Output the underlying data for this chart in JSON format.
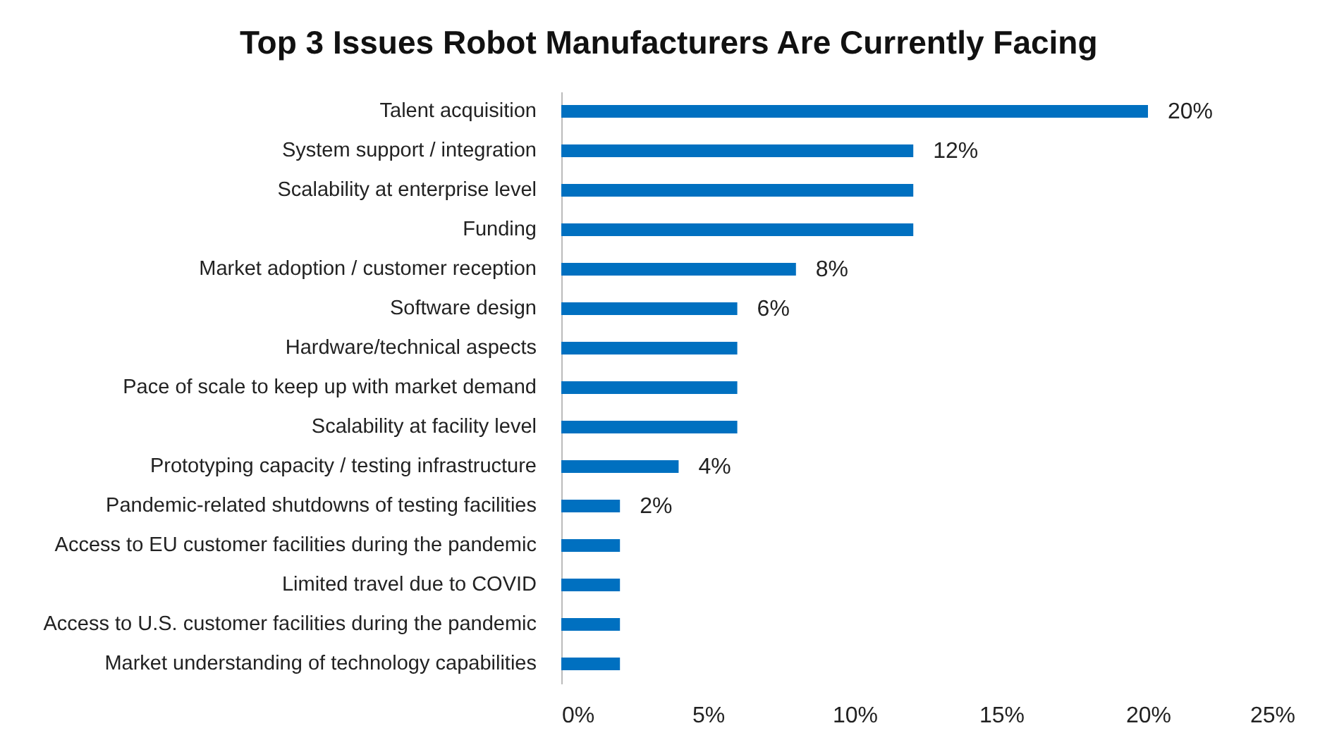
{
  "chart_data": {
    "type": "bar",
    "orientation": "horizontal",
    "title": "Top 3 Issues Robot Manufacturers Are Currently Facing",
    "categories": [
      "Talent acquisition",
      "System support / integration",
      "Scalability at enterprise level",
      "Funding",
      "Market adoption / customer reception",
      "Software design",
      "Hardware/technical aspects",
      "Pace of scale to keep up with market demand",
      "Scalability at facility level",
      "Prototyping capacity / testing infrastructure",
      "Pandemic-related shutdowns of testing facilities",
      "Access to EU customer facilities during the pandemic",
      "Limited travel due to COVID",
      "Access to U.S. customer facilities during the pandemic",
      "Market understanding of technology capabilities"
    ],
    "values": [
      20,
      12,
      12,
      12,
      8,
      6,
      6,
      6,
      6,
      4,
      2,
      2,
      2,
      2,
      2
    ],
    "value_labels": [
      "20%",
      "12%",
      null,
      null,
      "8%",
      "6%",
      null,
      null,
      null,
      "4%",
      "2%",
      null,
      null,
      null,
      null
    ],
    "color": "#0070c0",
    "xlim": [
      0,
      25
    ],
    "xticks": [
      {
        "value": 0,
        "label": "0%"
      },
      {
        "value": 5,
        "label": "5%"
      },
      {
        "value": 10,
        "label": "10%"
      },
      {
        "value": 15,
        "label": "15%"
      },
      {
        "value": 20,
        "label": "20%"
      },
      {
        "value": 25,
        "label": "25%"
      }
    ],
    "grid": false
  }
}
